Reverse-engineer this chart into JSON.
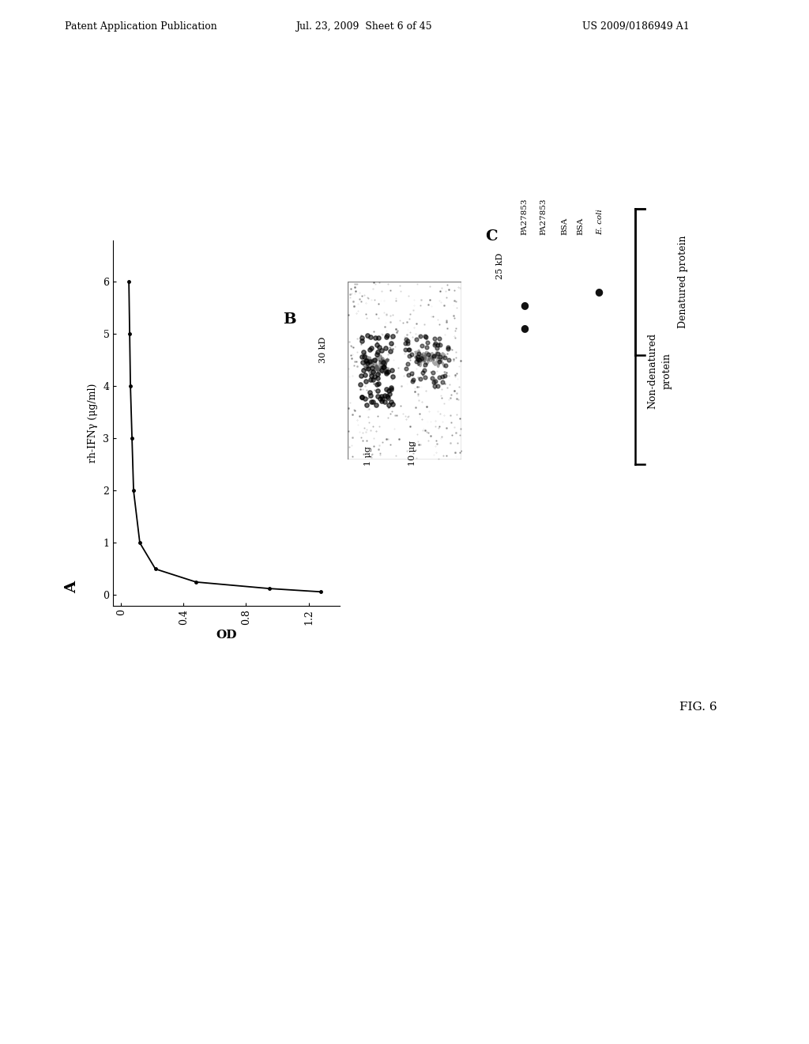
{
  "header_left": "Patent Application Publication",
  "header_mid": "Jul. 23, 2009  Sheet 6 of 45",
  "header_right": "US 2009/0186949 A1",
  "fig_label": "FIG. 6",
  "panel_A_label": "A",
  "panel_B_label": "B",
  "panel_C_label": "C",
  "OD_label": "OD",
  "x_axis_label": "rh-IFNγ (μg/ml)",
  "x_ticks": [
    0,
    1,
    2,
    3,
    4,
    5,
    6
  ],
  "y_ticks": [
    0,
    0.4,
    0.8,
    1.2
  ],
  "curve_x": [
    0.0625,
    0.125,
    0.25,
    0.5,
    1.0,
    2.0,
    3.0,
    4.0,
    5.0,
    6.0
  ],
  "curve_y": [
    1.28,
    0.95,
    0.48,
    0.22,
    0.12,
    0.08,
    0.07,
    0.06,
    0.055,
    0.05
  ],
  "B_label_30kD": "30 kD",
  "B_label_1ug": "1 μg",
  "B_label_10ug": "10 μg",
  "C_label_25kD": "25 kD",
  "C_label_PA27853_1": "PA27853",
  "C_label_PA27853_2": "PA27853",
  "C_label_BSA_1": "BSA",
  "C_label_BSA_2": "BSA",
  "C_label_ecoli": "E. coli",
  "bracket_label_nondenatured_1": "Non-denatured",
  "bracket_label_nondenatured_2": "protein",
  "bracket_label_denatured": "Denatured protein",
  "background_color": "#ffffff",
  "line_color": "#000000",
  "text_color": "#000000"
}
